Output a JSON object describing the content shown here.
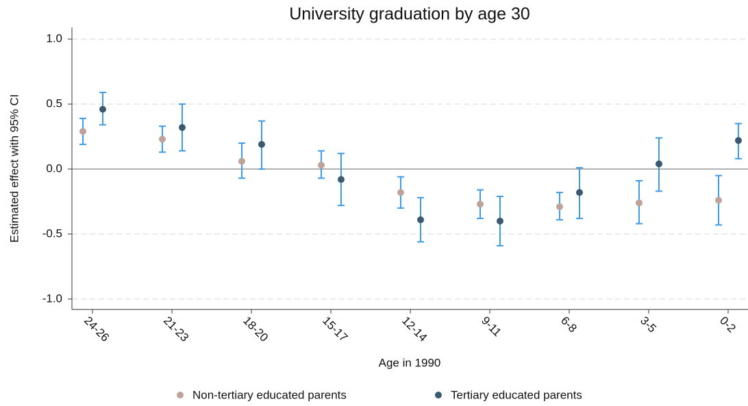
{
  "chart_data": {
    "type": "errorbar",
    "title": "University graduation by age 30",
    "x_label": "Age in 1990",
    "y_label": "Estimated effect with 95% CI",
    "categories": [
      "24-26",
      "21-23",
      "18-20",
      "15-17",
      "12-14",
      "9-11",
      "6-8",
      "3-5",
      "0-2"
    ],
    "ylim": [
      -1.08,
      1.09
    ],
    "yticks": [
      {
        "value": -1,
        "label": "-1.0"
      },
      {
        "value": -0.5,
        "label": "-0.5"
      },
      {
        "value": 0,
        "label": "0.0"
      },
      {
        "value": 0.5,
        "label": "0.5"
      },
      {
        "value": 1,
        "label": "1.0"
      }
    ],
    "grid": true,
    "errorbar_color": "#3d9be9",
    "series": [
      {
        "name": "Non-tertiary educated parents",
        "color": "#bfa39b",
        "values": [
          0.29,
          0.23,
          0.06,
          0.03,
          -0.18,
          -0.27,
          -0.29,
          -0.26,
          -0.24
        ],
        "ci_low": [
          0.19,
          0.13,
          -0.07,
          -0.07,
          -0.3,
          -0.38,
          -0.39,
          -0.42,
          -0.43
        ],
        "ci_high": [
          0.39,
          0.33,
          0.2,
          0.14,
          -0.06,
          -0.16,
          -0.18,
          -0.09,
          -0.05
        ]
      },
      {
        "name": "Tertiary educated parents",
        "color": "#3b5a70",
        "values": [
          0.46,
          0.32,
          0.19,
          -0.08,
          -0.39,
          -0.4,
          -0.18,
          0.04,
          0.22
        ],
        "ci_low": [
          0.34,
          0.14,
          0.0,
          -0.28,
          -0.56,
          -0.59,
          -0.38,
          -0.17,
          0.08
        ],
        "ci_high": [
          0.59,
          0.5,
          0.37,
          0.12,
          -0.22,
          -0.21,
          0.01,
          0.24,
          0.35
        ]
      }
    ]
  }
}
